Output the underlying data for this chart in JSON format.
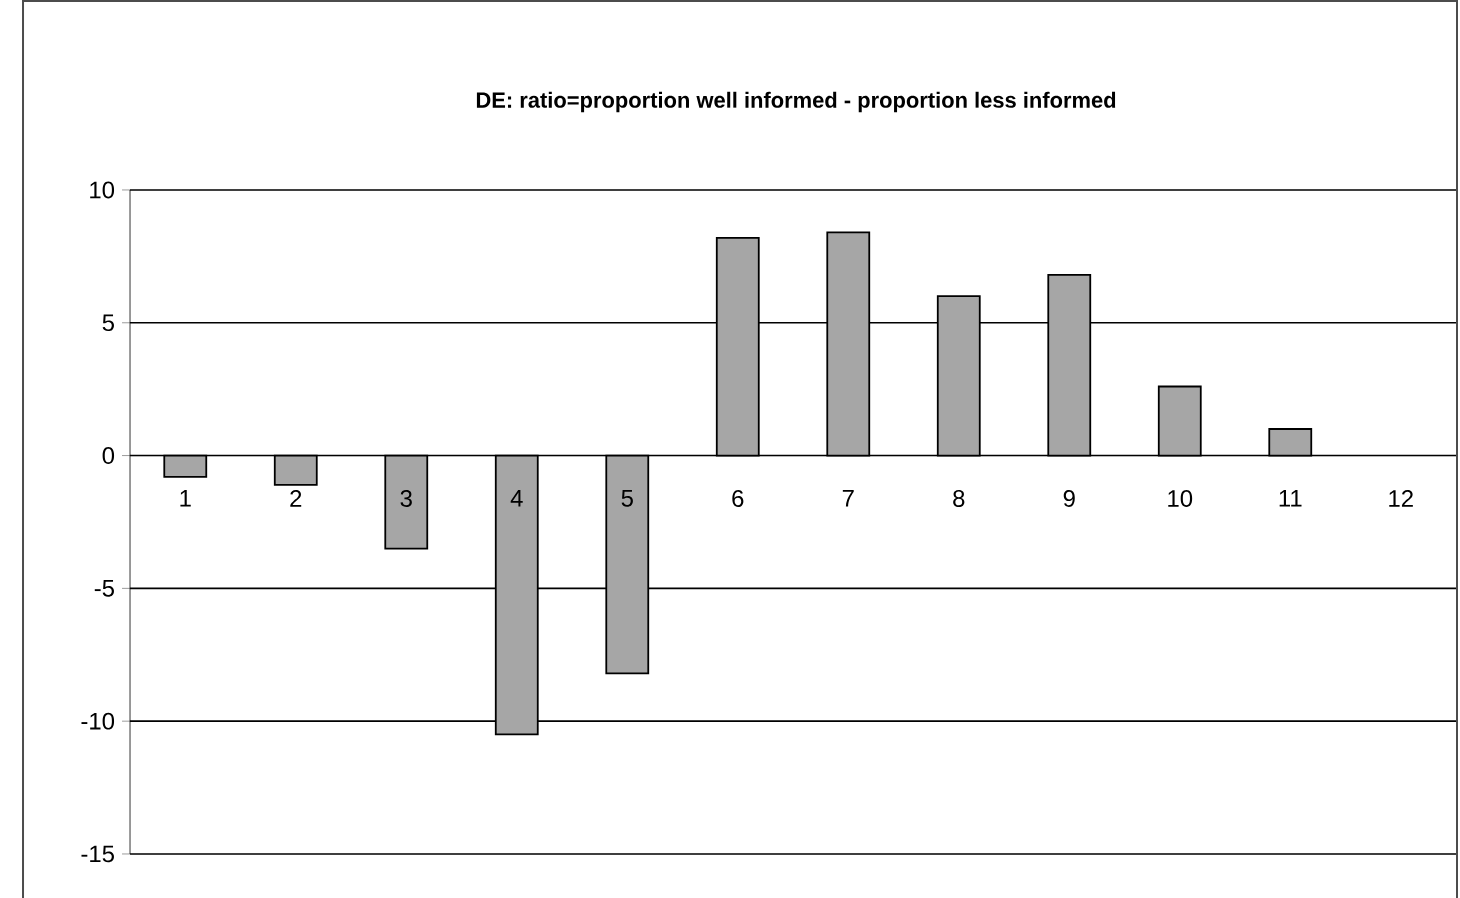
{
  "chart_data": {
    "type": "bar",
    "title": "DE: ratio=proportion well informed - proportion less informed",
    "categories": [
      "1",
      "2",
      "3",
      "4",
      "5",
      "6",
      "7",
      "8",
      "9",
      "10",
      "11",
      "12"
    ],
    "values": [
      -0.8,
      -1.1,
      -3.5,
      -10.5,
      -8.2,
      8.2,
      8.4,
      6.0,
      6.8,
      2.6,
      1.0,
      null
    ],
    "color": "#a6a6a6",
    "ylim": [
      -15,
      10
    ],
    "yticks": [
      -15,
      -10,
      -5,
      0,
      5,
      10
    ],
    "grid": "y"
  }
}
